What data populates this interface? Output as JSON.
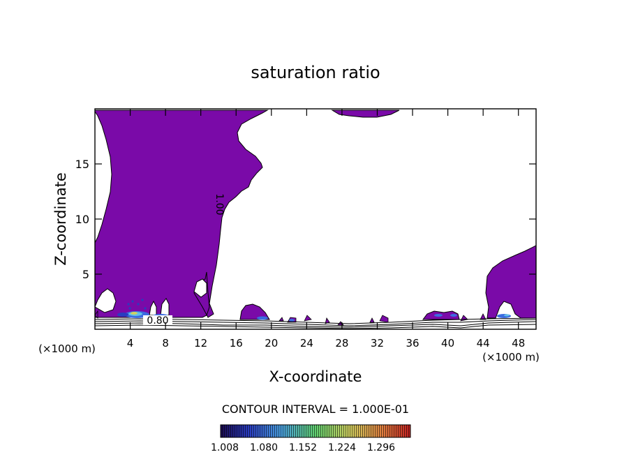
{
  "chart_data": {
    "type": "heatmap",
    "title": "saturation ratio",
    "xlabel": "X-coordinate",
    "ylabel": "Z-coordinate",
    "x_unit": "(×1000 m)",
    "y_unit": "(×1000 m)",
    "xlim": [
      0,
      50
    ],
    "ylim": [
      0,
      20
    ],
    "x_ticks": [
      4,
      8,
      12,
      16,
      20,
      24,
      28,
      32,
      36,
      40,
      44,
      48
    ],
    "x_tick_labels": [
      "4",
      "8",
      "12",
      "16",
      "20",
      "24",
      "28",
      "32",
      "36",
      "40",
      "44",
      "48"
    ],
    "y_ticks": [
      5,
      10,
      15
    ],
    "y_tick_labels": [
      "5",
      "10",
      "15"
    ],
    "contour_labels": [
      {
        "text": "1.00",
        "x": 13.8,
        "z": 11.3
      },
      {
        "text": "0.80",
        "x": 7.8,
        "z": 0.6
      }
    ],
    "contour_interval_text": "CONTOUR INTERVAL = 1.000E-01",
    "colorbar": {
      "ticks": [
        "1.008",
        "1.080",
        "1.152",
        "1.224",
        "1.296"
      ],
      "colors": [
        "#1a0a4e",
        "#2a3cc0",
        "#4aa0e0",
        "#60d070",
        "#d0d060",
        "#e08040",
        "#c02020"
      ]
    },
    "fill_color": "#7a0aa8"
  }
}
